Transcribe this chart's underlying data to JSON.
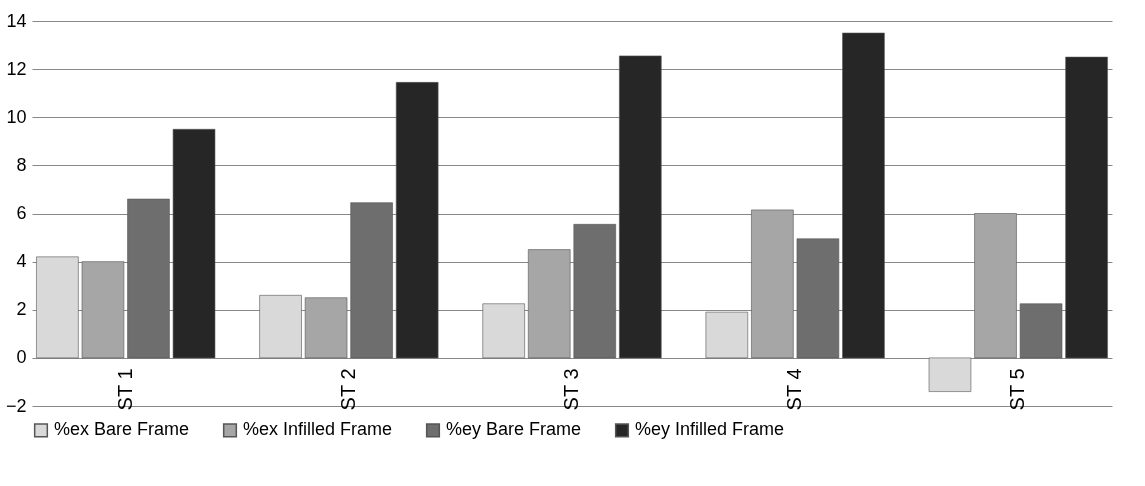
{
  "chart_data": {
    "type": "bar",
    "categories": [
      "ST 1",
      "ST 2",
      "ST 3",
      "ST 4",
      "ST 5"
    ],
    "series": [
      {
        "name": "%ex Bare Frame",
        "color": "#d9d9d9",
        "values": [
          4.2,
          2.6,
          2.25,
          1.9,
          -1.4
        ]
      },
      {
        "name": "%ex Infilled Frame",
        "color": "#a6a6a6",
        "values": [
          4.0,
          2.5,
          4.5,
          6.15,
          6.0
        ]
      },
      {
        "name": "%ey Bare Frame",
        "color": "#6e6e6e",
        "values": [
          6.6,
          6.45,
          5.55,
          4.95,
          2.25
        ]
      },
      {
        "name": "%ey Infilled Frame",
        "color": "#262626",
        "values": [
          9.5,
          11.45,
          12.55,
          13.5,
          12.5
        ]
      }
    ],
    "ylim": [
      -2,
      14
    ],
    "yticks": [
      -2,
      0,
      2,
      4,
      6,
      8,
      10,
      12,
      14
    ],
    "grid": "y",
    "legend": "bottom"
  }
}
